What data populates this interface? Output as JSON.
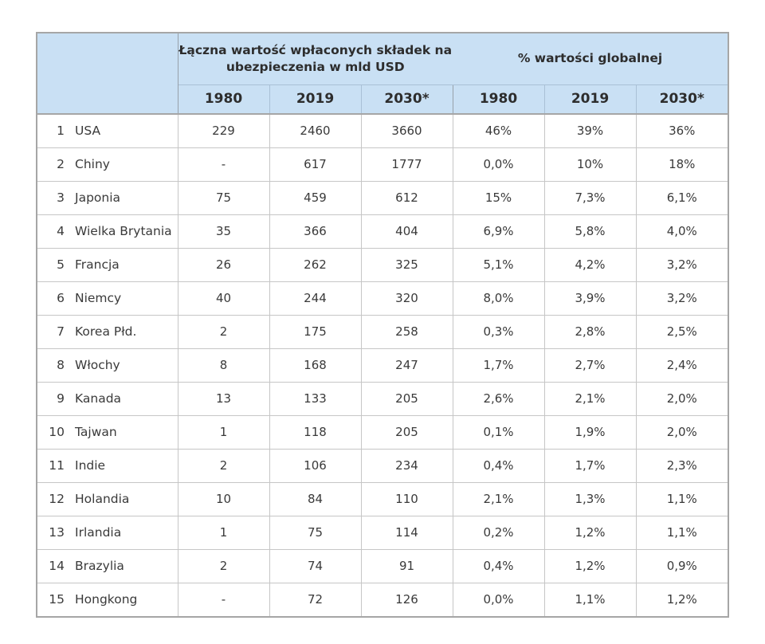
{
  "chart_data": {
    "type": "table",
    "group_headers": {
      "premiums": "Łączna wartość wpłaconych składek na ubezpieczenia w mld USD",
      "share": "% wartości globalnej"
    },
    "year_headers": [
      "1980",
      "2019",
      "2030*"
    ],
    "rows": [
      {
        "rank": "1",
        "country": "USA",
        "premiums": [
          "229",
          "2460",
          "3660"
        ],
        "share": [
          "46%",
          "39%",
          "36%"
        ]
      },
      {
        "rank": "2",
        "country": "Chiny",
        "premiums": [
          "-",
          "617",
          "1777"
        ],
        "share": [
          "0,0%",
          "10%",
          "18%"
        ]
      },
      {
        "rank": "3",
        "country": "Japonia",
        "premiums": [
          "75",
          "459",
          "612"
        ],
        "share": [
          "15%",
          "7,3%",
          "6,1%"
        ]
      },
      {
        "rank": "4",
        "country": "Wielka Brytania",
        "premiums": [
          "35",
          "366",
          "404"
        ],
        "share": [
          "6,9%",
          "5,8%",
          "4,0%"
        ]
      },
      {
        "rank": "5",
        "country": "Francja",
        "premiums": [
          "26",
          "262",
          "325"
        ],
        "share": [
          "5,1%",
          "4,2%",
          "3,2%"
        ]
      },
      {
        "rank": "6",
        "country": "Niemcy",
        "premiums": [
          "40",
          "244",
          "320"
        ],
        "share": [
          "8,0%",
          "3,9%",
          "3,2%"
        ]
      },
      {
        "rank": "7",
        "country": "Korea Płd.",
        "premiums": [
          "2",
          "175",
          "258"
        ],
        "share": [
          "0,3%",
          "2,8%",
          "2,5%"
        ]
      },
      {
        "rank": "8",
        "country": "Włochy",
        "premiums": [
          "8",
          "168",
          "247"
        ],
        "share": [
          "1,7%",
          "2,7%",
          "2,4%"
        ]
      },
      {
        "rank": "9",
        "country": "Kanada",
        "premiums": [
          "13",
          "133",
          "205"
        ],
        "share": [
          "2,6%",
          "2,1%",
          "2,0%"
        ]
      },
      {
        "rank": "10",
        "country": "Tajwan",
        "premiums": [
          "1",
          "118",
          "205"
        ],
        "share": [
          "0,1%",
          "1,9%",
          "2,0%"
        ]
      },
      {
        "rank": "11",
        "country": "Indie",
        "premiums": [
          "2",
          "106",
          "234"
        ],
        "share": [
          "0,4%",
          "1,7%",
          "2,3%"
        ]
      },
      {
        "rank": "12",
        "country": "Holandia",
        "premiums": [
          "10",
          "84",
          "110"
        ],
        "share": [
          "2,1%",
          "1,3%",
          "1,1%"
        ]
      },
      {
        "rank": "13",
        "country": "Irlandia",
        "premiums": [
          "1",
          "75",
          "114"
        ],
        "share": [
          "0,2%",
          "1,2%",
          "1,1%"
        ]
      },
      {
        "rank": "14",
        "country": "Brazylia",
        "premiums": [
          "2",
          "74",
          "91"
        ],
        "share": [
          "0,4%",
          "1,2%",
          "0,9%"
        ]
      },
      {
        "rank": "15",
        "country": "Hongkong",
        "premiums": [
          "-",
          "72",
          "126"
        ],
        "share": [
          "0,0%",
          "1,1%",
          "1,2%"
        ]
      }
    ],
    "layout_hints": {
      "header_bg": "#c9e0f4",
      "outer_border": "#a6a6a6",
      "grid_line": "#c6c6c6",
      "header_grid_line": "#a9c0d6",
      "header_text": "#2d2d2d",
      "body_text": "#3a3a3a"
    }
  }
}
